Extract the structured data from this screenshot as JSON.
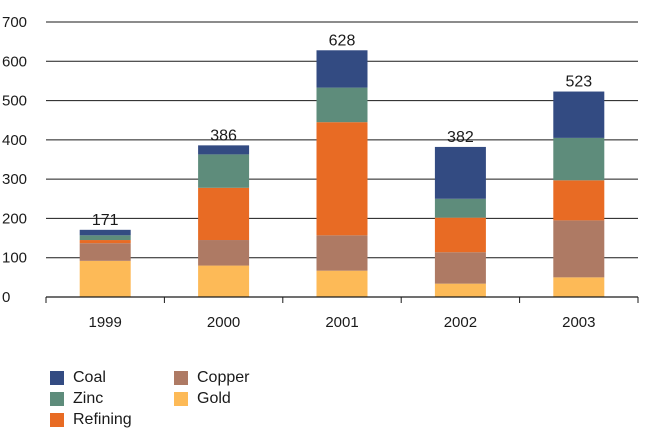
{
  "chart_data": {
    "type": "bar",
    "stacked": true,
    "categories": [
      "1999",
      "2000",
      "2001",
      "2002",
      "2003"
    ],
    "series": [
      {
        "name": "Gold",
        "color": "#FDBA57",
        "values": [
          92,
          80,
          67,
          34,
          50
        ]
      },
      {
        "name": "Copper",
        "color": "#AE7A64",
        "values": [
          45,
          65,
          90,
          80,
          145
        ]
      },
      {
        "name": "Refining",
        "color": "#E86B24",
        "values": [
          8,
          133,
          288,
          88,
          102
        ]
      },
      {
        "name": "Zinc",
        "color": "#5E8C7B",
        "values": [
          12,
          85,
          88,
          48,
          108
        ]
      },
      {
        "name": "Coal",
        "color": "#334B82",
        "values": [
          14,
          23,
          95,
          132,
          118
        ]
      }
    ],
    "totals": [
      171,
      386,
      628,
      382,
      523
    ],
    "ylim": [
      0,
      700
    ],
    "yticks": [
      0,
      100,
      200,
      300,
      400,
      500,
      600,
      700
    ],
    "title": "",
    "xlabel": "",
    "ylabel": "",
    "grid": true,
    "legend_position": "bottom-left",
    "legend": [
      {
        "name": "Coal",
        "color": "#334B82"
      },
      {
        "name": "Zinc",
        "color": "#5E8C7B"
      },
      {
        "name": "Refining",
        "color": "#E86B24"
      },
      {
        "name": "Copper",
        "color": "#AE7A64"
      },
      {
        "name": "Gold",
        "color": "#FDBA57"
      }
    ]
  }
}
